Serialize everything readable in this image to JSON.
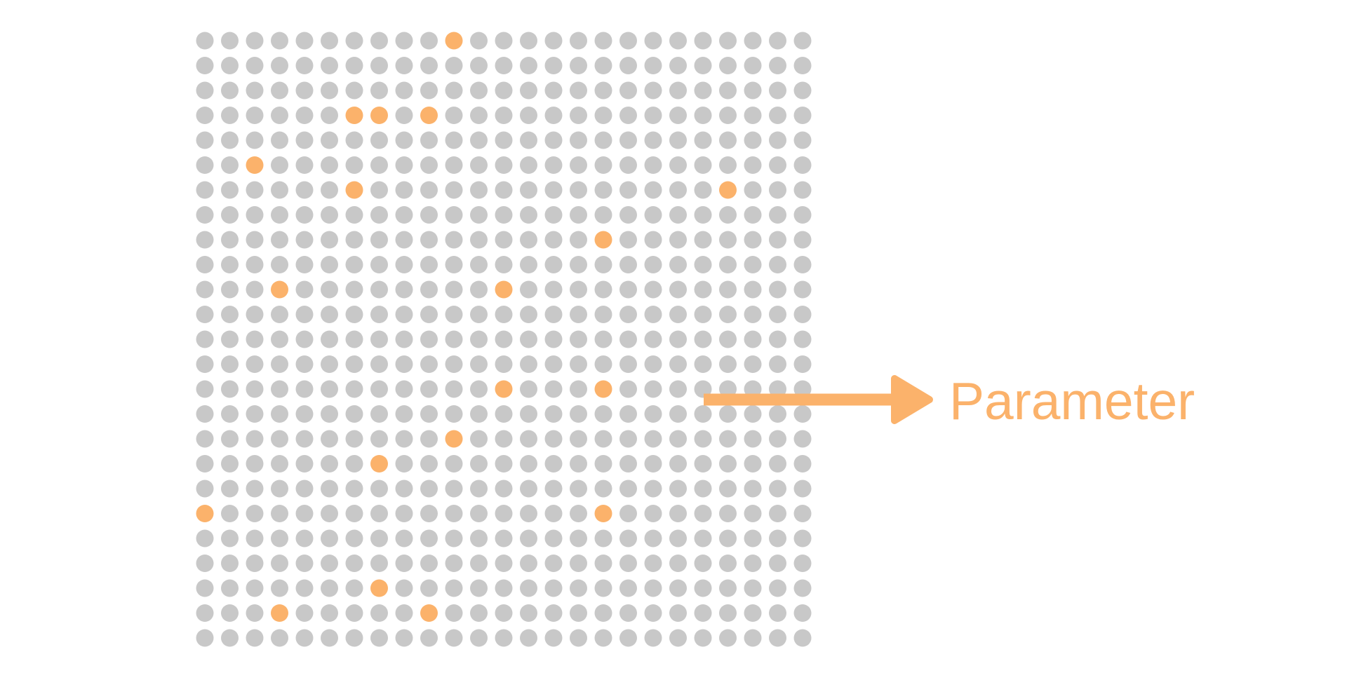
{
  "grid": {
    "rows": 25,
    "cols": 25,
    "dot_color": "#c8c8c8",
    "highlight_color": "#fbb26b",
    "highlighted": [
      [
        0,
        10
      ],
      [
        3,
        6
      ],
      [
        3,
        7
      ],
      [
        3,
        9
      ],
      [
        5,
        2
      ],
      [
        6,
        6
      ],
      [
        6,
        21
      ],
      [
        8,
        16
      ],
      [
        10,
        3
      ],
      [
        10,
        12
      ],
      [
        14,
        12
      ],
      [
        14,
        16
      ],
      [
        16,
        10
      ],
      [
        17,
        7
      ],
      [
        19,
        0
      ],
      [
        19,
        16
      ],
      [
        22,
        7
      ],
      [
        23,
        3
      ],
      [
        23,
        9
      ]
    ]
  },
  "annotation": {
    "label": "Parameter",
    "color": "#fbb26b"
  }
}
